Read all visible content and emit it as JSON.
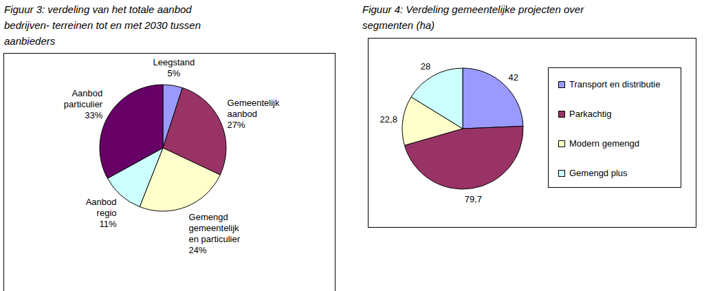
{
  "chart_data": [
    {
      "type": "pie",
      "title": "Figuur 3: verdeling van het totale aanbod\nbedrijven- terreinen tot en met 2030 tussen\naanbieders",
      "categories": [
        "Leegstand",
        "Gemeentelijk\naanbod",
        "Gemengd\ngemeentelijk\nen particulier",
        "Aanbod\nregio",
        "Aanbod\nparticulier"
      ],
      "values": [
        5,
        27,
        24,
        11,
        33
      ],
      "value_labels": [
        "5%",
        "27%",
        "24%",
        "11%",
        "33%"
      ],
      "colors": [
        "#9999ff",
        "#993366",
        "#ffffcc",
        "#ccffff",
        "#660066"
      ],
      "data_labels": true
    },
    {
      "type": "pie",
      "title": "Figuur 4: Verdeling gemeentelijke projecten over\nsegmenten (ha)",
      "categories": [
        "Transport en distributie",
        "Parkachtig",
        "Modern gemengd",
        "Gemengd plus"
      ],
      "values": [
        42,
        79.7,
        22.8,
        28
      ],
      "value_labels": [
        "42",
        "79,7",
        "22,8",
        "28"
      ],
      "colors": [
        "#9999ff",
        "#993366",
        "#ffffcc",
        "#ccffff"
      ],
      "data_labels": true,
      "legend": "right"
    }
  ]
}
